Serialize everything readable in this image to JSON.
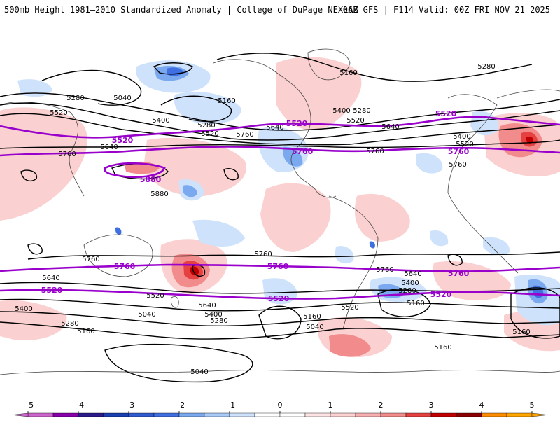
{
  "header": {
    "title_left": "500mb Height 1981–2010 Standardized Anomaly | College of DuPage NEXLAB",
    "title_right": "06Z GFS | F114 Valid: 00Z FRI NOV 21 2025"
  },
  "map": {
    "variable": "500mb Height",
    "contour_units": "dam/m",
    "emphasized_contours": [
      "5520",
      "5760",
      "5880"
    ],
    "contour_labels": {
      "l5280a": "5280",
      "l5040a": "5040",
      "l5520a": "5520",
      "l5160a": "5160",
      "l5400a": "5400",
      "l5280b": "5280",
      "l5520b": "5520",
      "l5760a": "5760",
      "l5640a": "5640",
      "l5520c": "5520",
      "l5760b": "5760",
      "l5880a": "5880",
      "l5880b": "5880",
      "l5760c": "5760",
      "l5640b": "5640",
      "l5520d": "5520",
      "l5400b": "5400",
      "l5280c": "5280",
      "l5160b": "5160",
      "l5040b": "5040",
      "l5160c": "5160",
      "l5400c": "5400",
      "l5280d": "5280",
      "l5520e": "5520",
      "l5160d": "5160",
      "l5640c": "5640",
      "l5520f": "5520",
      "l5760d": "5760",
      "l5760e": "5760",
      "l5040c": "5040",
      "l5160e": "5160",
      "l5280e": "5280",
      "l5400d": "5400",
      "l5520g": "5520",
      "l5640d": "5640",
      "l5760f": "5760",
      "l5760g": "5760",
      "l5520h": "5520",
      "l5640e": "5640",
      "l5400e": "5400",
      "l5280f": "5280",
      "l5160f": "5160",
      "l5040d": "5040",
      "l5160g": "5160",
      "l5040e": "5040",
      "l5520i": "5520",
      "l5760h": "5760",
      "l5520j": "5520",
      "l5640f": "5640",
      "l5400f": "5400",
      "l5280g": "5280",
      "l5160h": "5160",
      "l5160i": "5160",
      "l5160j": "5160",
      "l5040f": "5040",
      "l5160k": "5160",
      "l5520k": "5520",
      "l5520l": "5520",
      "l5760i": "5760",
      "l5160l": "5160"
    },
    "anomaly_colors": {
      "pos1": "#fbd0d0",
      "pos2": "#f28b8b",
      "pos3": "#e64141",
      "pos4": "#c00000",
      "neg1": "#cfe2fb",
      "neg2": "#7aa9ef",
      "neg3": "#3f6fe0",
      "neg4": "#1a3fb0",
      "contour": "#000000",
      "emphasis": "#9900cc",
      "coast": "#444444"
    }
  },
  "colorbar": {
    "ticks": [
      "−5",
      "−4",
      "−3",
      "−2",
      "−1",
      "0",
      "1",
      "2",
      "3",
      "4",
      "5"
    ],
    "tick_values": [
      -5,
      -4,
      -3,
      -2,
      -1,
      0,
      1,
      2,
      3,
      4,
      5
    ],
    "bins": [
      {
        "from": -5,
        "to": -4.5,
        "color": "#cc66cc"
      },
      {
        "from": -4.5,
        "to": -4,
        "color": "#8800aa"
      },
      {
        "from": -4,
        "to": -3.5,
        "color": "#2a1a8a"
      },
      {
        "from": -3.5,
        "to": -3,
        "color": "#1a3fb0"
      },
      {
        "from": -3,
        "to": -2.5,
        "color": "#2f5ad0"
      },
      {
        "from": -2.5,
        "to": -2,
        "color": "#3f6fe0"
      },
      {
        "from": -2,
        "to": -1.5,
        "color": "#7aa9ef"
      },
      {
        "from": -1.5,
        "to": -1,
        "color": "#a9c9f6"
      },
      {
        "from": -1,
        "to": -0.5,
        "color": "#cfe2fb"
      },
      {
        "from": -0.5,
        "to": 0,
        "color": "#ffffff"
      },
      {
        "from": 0,
        "to": 0.5,
        "color": "#ffffff"
      },
      {
        "from": 0.5,
        "to": 1,
        "color": "#fde3e3"
      },
      {
        "from": 1,
        "to": 1.5,
        "color": "#fbd0d0"
      },
      {
        "from": 1.5,
        "to": 2,
        "color": "#f6b0b0"
      },
      {
        "from": 2,
        "to": 2.5,
        "color": "#f28b8b"
      },
      {
        "from": 2.5,
        "to": 3,
        "color": "#e64141"
      },
      {
        "from": 3,
        "to": 3.5,
        "color": "#c00000"
      },
      {
        "from": 3.5,
        "to": 4,
        "color": "#8b0000"
      },
      {
        "from": 4,
        "to": 4.5,
        "color": "#ff8c00"
      },
      {
        "from": 4.5,
        "to": 5,
        "color": "#ffa500"
      }
    ]
  }
}
